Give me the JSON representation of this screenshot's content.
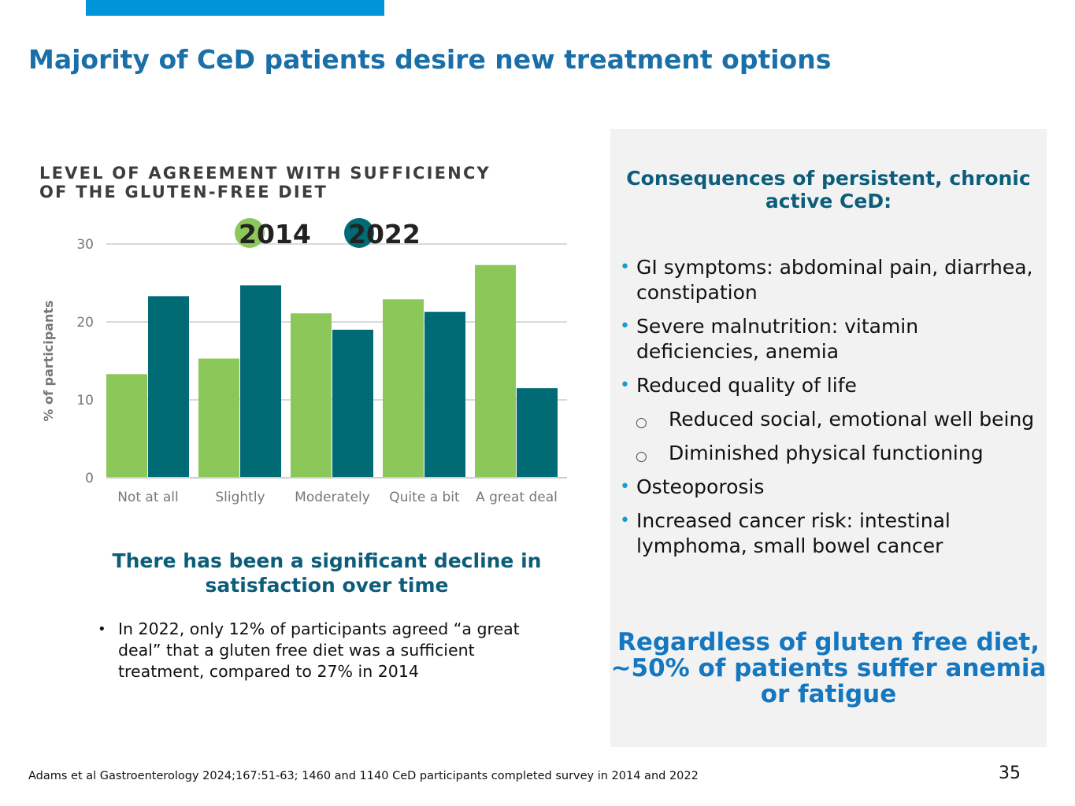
{
  "slide": {
    "title": "Majority of CeD patients desire new treatment options",
    "page_number": "35",
    "footnote": "Adams et al Gastroenterology 2024;167:51-63;  1460 and 1140 CeD participants completed survey in 2014 and 2022"
  },
  "colors": {
    "accent_bar": "#0095d9",
    "series_2014": "#8bc759",
    "series_2022": "#006a75",
    "title": "#1a6fa8"
  },
  "chart_data": {
    "type": "bar",
    "title_line1": "LEVEL OF AGREEMENT WITH SUFFICIENCY",
    "title_line2": "OF THE GLUTEN-FREE DIET",
    "categories": [
      "Not at all",
      "Slightly",
      "Moderately",
      "Quite a bit",
      "A great deal"
    ],
    "series": [
      {
        "name": "2014",
        "values": [
          13.3,
          15.3,
          21.1,
          22.9,
          27.3
        ]
      },
      {
        "name": "2022",
        "values": [
          23.3,
          24.7,
          19.0,
          21.3,
          11.5
        ]
      }
    ],
    "ylabel": "% of participants",
    "xlabel": "",
    "yticks": [
      0,
      10,
      20,
      30
    ],
    "ylim": [
      0,
      30
    ],
    "grid": true,
    "legend_position": "top"
  },
  "left": {
    "heading": "There has been a significant decline in satisfaction over time",
    "bullets": [
      "In 2022, only 12% of participants agreed “a great deal” that a gluten free diet was a sufficient treatment, compared to 27% in 2014"
    ]
  },
  "panel": {
    "heading": "Consequences of persistent, chronic active CeD:",
    "items": [
      "GI symptoms: abdominal pain, diarrhea, constipation",
      "Severe malnutrition: vitamin deficiencies, anemia",
      "Reduced quality of life",
      "Reduced social, emotional well being",
      "Diminished physical functioning",
      "Osteoporosis",
      "Increased cancer risk: intestinal lymphoma, small bowel cancer"
    ],
    "callout": "Regardless of gluten free diet, ~50% of patients suffer anemia or fatigue"
  }
}
